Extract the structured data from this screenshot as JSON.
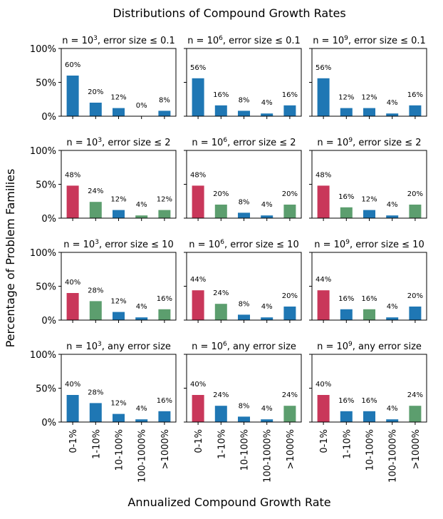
{
  "chart_data": {
    "type": "bar",
    "title": "Distributions of Compound Growth Rates",
    "xlabel": "Annualized Compound Growth Rate",
    "ylabel": "Percentage of Problem Families",
    "categories": [
      "0-1%",
      "1-10%",
      "10-100%",
      "100-1000%",
      ">1000%"
    ],
    "ylim": [
      0,
      100
    ],
    "yticks": [
      "100%",
      "50%",
      "0%"
    ],
    "colors": {
      "blue": "#1f77b4",
      "red": "#c9375a",
      "green": "#5c9e6e"
    },
    "panels": [
      {
        "n_base": "n = 10",
        "n_exp": "3",
        "cond": ", error size ≤ 0.1",
        "values": [
          60,
          20,
          12,
          0,
          8
        ],
        "labels": [
          "60%",
          "20%",
          "12%",
          "0%",
          "8%"
        ],
        "colors": [
          "blue",
          "blue",
          "blue",
          "blue",
          "blue"
        ]
      },
      {
        "n_base": "n = 10",
        "n_exp": "6",
        "cond": ", error size ≤ 0.1",
        "values": [
          56,
          16,
          8,
          4,
          16
        ],
        "labels": [
          "56%",
          "16%",
          "8%",
          "4%",
          "16%"
        ],
        "colors": [
          "blue",
          "blue",
          "blue",
          "blue",
          "blue"
        ]
      },
      {
        "n_base": "n = 10",
        "n_exp": "9",
        "cond": ", error size ≤ 0.1",
        "values": [
          56,
          12,
          12,
          4,
          16
        ],
        "labels": [
          "56%",
          "12%",
          "12%",
          "4%",
          "16%"
        ],
        "colors": [
          "blue",
          "blue",
          "blue",
          "blue",
          "blue"
        ]
      },
      {
        "n_base": "n = 10",
        "n_exp": "3",
        "cond": ", error size ≤ 2",
        "values": [
          48,
          24,
          12,
          4,
          12
        ],
        "labels": [
          "48%",
          "24%",
          "12%",
          "4%",
          "12%"
        ],
        "colors": [
          "red",
          "green",
          "blue",
          "green",
          "green"
        ]
      },
      {
        "n_base": "n = 10",
        "n_exp": "6",
        "cond": ", error size ≤ 2",
        "values": [
          48,
          20,
          8,
          4,
          20
        ],
        "labels": [
          "48%",
          "20%",
          "8%",
          "4%",
          "20%"
        ],
        "colors": [
          "red",
          "green",
          "blue",
          "blue",
          "green"
        ]
      },
      {
        "n_base": "n = 10",
        "n_exp": "9",
        "cond": ", error size ≤ 2",
        "values": [
          48,
          16,
          12,
          4,
          20
        ],
        "labels": [
          "48%",
          "16%",
          "12%",
          "4%",
          "20%"
        ],
        "colors": [
          "red",
          "green",
          "blue",
          "blue",
          "green"
        ]
      },
      {
        "n_base": "n = 10",
        "n_exp": "3",
        "cond": ", error size ≤ 10",
        "values": [
          40,
          28,
          12,
          4,
          16
        ],
        "labels": [
          "40%",
          "28%",
          "12%",
          "4%",
          "16%"
        ],
        "colors": [
          "red",
          "green",
          "blue",
          "blue",
          "green"
        ]
      },
      {
        "n_base": "n = 10",
        "n_exp": "6",
        "cond": ", error size ≤ 10",
        "values": [
          44,
          24,
          8,
          4,
          20
        ],
        "labels": [
          "44%",
          "24%",
          "8%",
          "4%",
          "20%"
        ],
        "colors": [
          "red",
          "green",
          "blue",
          "blue",
          "blue"
        ]
      },
      {
        "n_base": "n = 10",
        "n_exp": "9",
        "cond": ", error size ≤ 10",
        "values": [
          44,
          16,
          16,
          4,
          20
        ],
        "labels": [
          "44%",
          "16%",
          "16%",
          "4%",
          "20%"
        ],
        "colors": [
          "red",
          "blue",
          "green",
          "blue",
          "blue"
        ]
      },
      {
        "n_base": "n = 10",
        "n_exp": "3",
        "cond": ", any error size",
        "values": [
          40,
          28,
          12,
          4,
          16
        ],
        "labels": [
          "40%",
          "28%",
          "12%",
          "4%",
          "16%"
        ],
        "colors": [
          "blue",
          "blue",
          "blue",
          "blue",
          "blue"
        ]
      },
      {
        "n_base": "n = 10",
        "n_exp": "6",
        "cond": ", any error size",
        "values": [
          40,
          24,
          8,
          4,
          24
        ],
        "labels": [
          "40%",
          "24%",
          "8%",
          "4%",
          "24%"
        ],
        "colors": [
          "red",
          "blue",
          "blue",
          "blue",
          "green"
        ]
      },
      {
        "n_base": "n = 10",
        "n_exp": "9",
        "cond": ", any error size",
        "values": [
          40,
          16,
          16,
          4,
          24
        ],
        "labels": [
          "40%",
          "16%",
          "16%",
          "4%",
          "24%"
        ],
        "colors": [
          "red",
          "blue",
          "blue",
          "blue",
          "green"
        ]
      }
    ]
  }
}
